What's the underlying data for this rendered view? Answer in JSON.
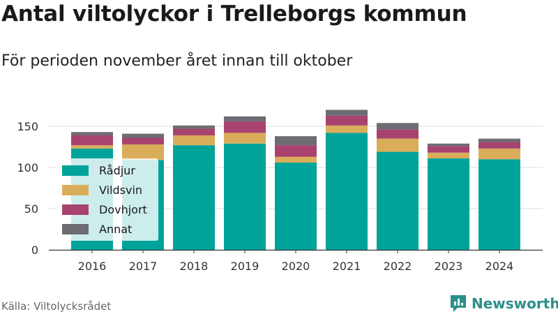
{
  "title": "Antal viltolyckor i Trelleborgs kommun",
  "subtitle": "För perioden november året innan till oktober",
  "source": "Källa: Viltolycksrådet",
  "brand": "Newsworthy",
  "colors": {
    "Rådjur": "#00a39a",
    "Vildsvin": "#d9ad5a",
    "Dovhjort": "#a8426f",
    "Annat": "#6c6c72",
    "brand": "#2c8f8a"
  },
  "chart_data": {
    "type": "bar",
    "stacked": true,
    "categories": [
      "2016",
      "2017",
      "2018",
      "2019",
      "2020",
      "2021",
      "2022",
      "2023",
      "2024"
    ],
    "series": [
      {
        "name": "Rådjur",
        "values": [
          123,
          109,
          127,
          129,
          106,
          142,
          119,
          111,
          110
        ]
      },
      {
        "name": "Vildsvin",
        "values": [
          4,
          19,
          12,
          13,
          7,
          9,
          16,
          7,
          13
        ]
      },
      {
        "name": "Dovhjort",
        "values": [
          12,
          8,
          8,
          14,
          14,
          12,
          11,
          8,
          8
        ]
      },
      {
        "name": "Annat",
        "values": [
          4,
          5,
          4,
          6,
          11,
          7,
          8,
          3,
          4
        ]
      }
    ],
    "ylim": [
      0,
      175
    ],
    "yticks": [
      0,
      50,
      100,
      150
    ],
    "grid": true,
    "legend_position": "left"
  }
}
